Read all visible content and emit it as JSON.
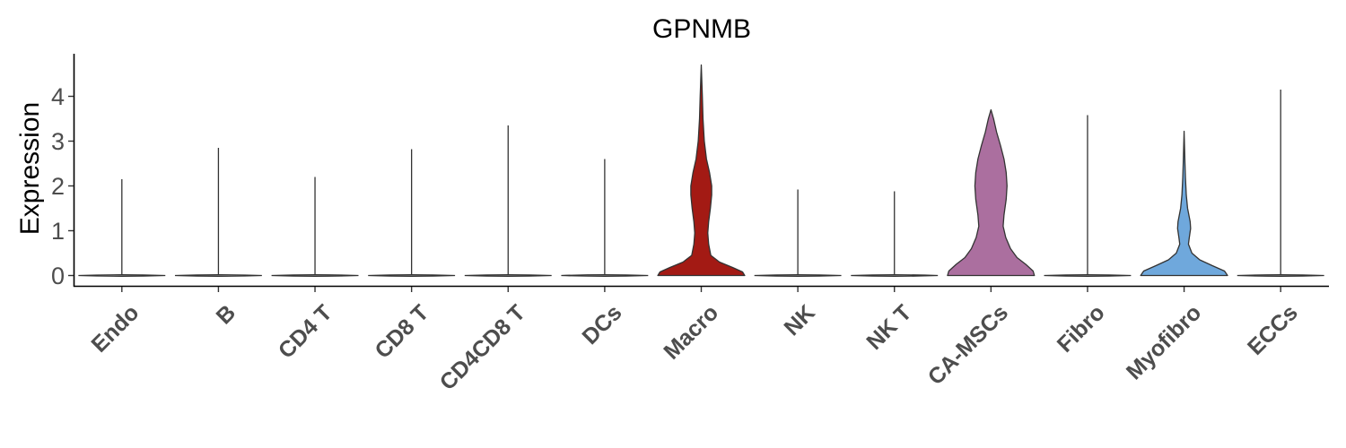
{
  "chart_data": {
    "type": "violin",
    "title": "GPNMB",
    "xlabel": "",
    "ylabel": "Expression",
    "ylim": [
      -0.25,
      4.95
    ],
    "yticks": [
      "0",
      "1",
      "2",
      "3",
      "4"
    ],
    "grid": false,
    "legend": "none",
    "categories": [
      "Endo",
      "B",
      "CD4 T",
      "CD8 T",
      "CD4CD8 T",
      "DCs",
      "Macro",
      "NK",
      "NK T",
      "CA-MSCs",
      "Fibro",
      "Myofibro",
      "ECCs"
    ],
    "max_values": [
      2.15,
      2.85,
      2.2,
      2.82,
      3.35,
      2.6,
      4.7,
      1.92,
      1.88,
      3.7,
      3.58,
      3.22,
      4.15
    ],
    "fill_colors": [
      "#ffffff",
      "#ffffff",
      "#ffffff",
      "#ffffff",
      "#ffffff",
      "#ffffff",
      "#a31a14",
      "#ffffff",
      "#ffffff",
      "#ab6f9f",
      "#ffffff",
      "#6fa8dc",
      "#ffffff"
    ],
    "density_profiles": [
      null,
      null,
      null,
      null,
      null,
      null,
      [
        [
          0,
          1
        ],
        [
          0.08,
          0.95
        ],
        [
          0.18,
          0.72
        ],
        [
          0.3,
          0.42
        ],
        [
          0.45,
          0.22
        ],
        [
          0.7,
          0.17
        ],
        [
          0.95,
          0.15
        ],
        [
          1.2,
          0.17
        ],
        [
          1.5,
          0.21
        ],
        [
          1.8,
          0.24
        ],
        [
          2.0,
          0.24
        ],
        [
          2.3,
          0.19
        ],
        [
          2.6,
          0.12
        ],
        [
          3.0,
          0.07
        ],
        [
          3.5,
          0.04
        ],
        [
          4.0,
          0.025
        ],
        [
          4.7,
          0
        ]
      ],
      null,
      null,
      [
        [
          0,
          1
        ],
        [
          0.1,
          0.97
        ],
        [
          0.25,
          0.8
        ],
        [
          0.4,
          0.6
        ],
        [
          0.6,
          0.45
        ],
        [
          0.85,
          0.34
        ],
        [
          1.1,
          0.28
        ],
        [
          1.35,
          0.3
        ],
        [
          1.7,
          0.35
        ],
        [
          2.0,
          0.37
        ],
        [
          2.3,
          0.35
        ],
        [
          2.6,
          0.3
        ],
        [
          2.9,
          0.22
        ],
        [
          3.2,
          0.13
        ],
        [
          3.5,
          0.06
        ],
        [
          3.7,
          0
        ]
      ],
      null,
      [
        [
          0,
          1
        ],
        [
          0.1,
          0.93
        ],
        [
          0.22,
          0.65
        ],
        [
          0.35,
          0.36
        ],
        [
          0.5,
          0.18
        ],
        [
          0.7,
          0.1
        ],
        [
          0.85,
          0.12
        ],
        [
          1.05,
          0.15
        ],
        [
          1.2,
          0.14
        ],
        [
          1.5,
          0.08
        ],
        [
          1.8,
          0.05
        ],
        [
          2.2,
          0.03
        ],
        [
          2.5,
          0.02
        ],
        [
          3.22,
          0
        ]
      ],
      null
    ]
  }
}
